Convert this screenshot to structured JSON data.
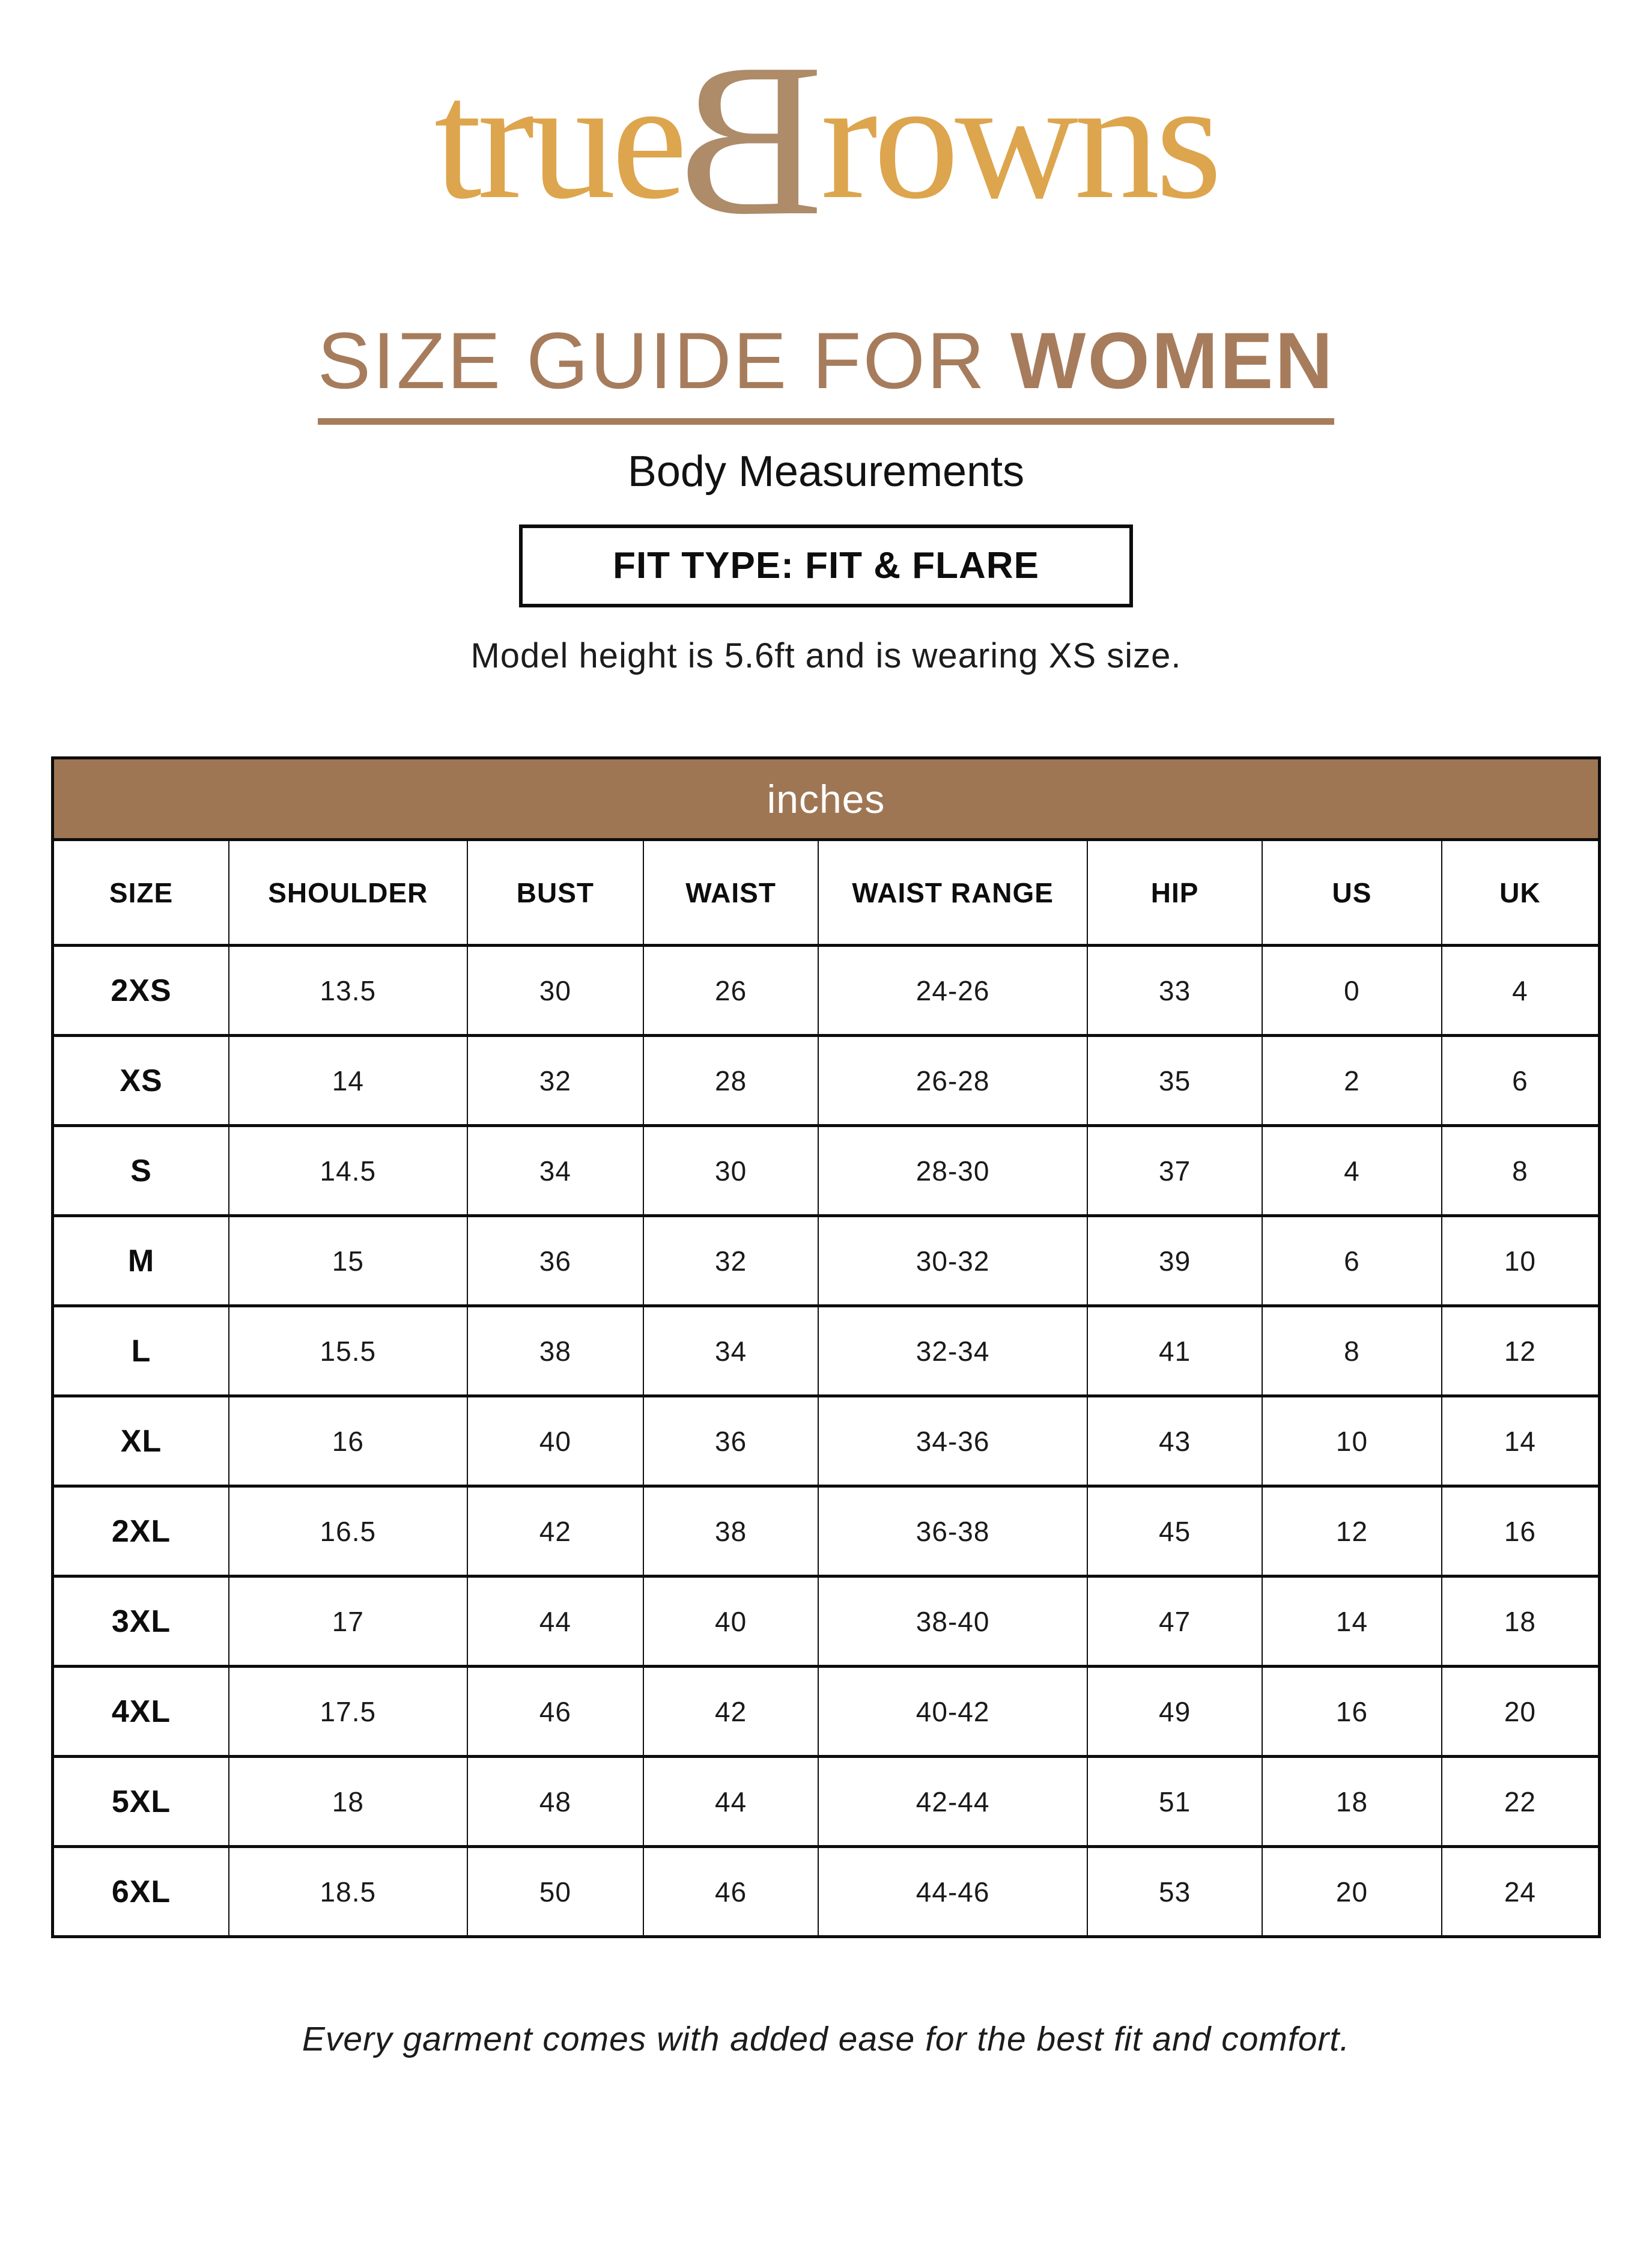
{
  "theme": {
    "gold": "#DDA54D",
    "taupe": "#AE8B69",
    "brown": "#A67C5C",
    "band_brown": "#9F7654",
    "ink": "#111111",
    "page_bg": "#FFFFFF"
  },
  "brand": {
    "logo_part1": "true",
    "logo_part2": "B",
    "logo_part3": "rowns"
  },
  "header": {
    "title_regular": "SIZE GUIDE FOR ",
    "title_bold": "WOMEN",
    "subtitle": "Body Measurements",
    "fit_type_label": "FIT TYPE: FIT & FLARE",
    "model_note": "Model height is 5.6ft and is wearing XS size."
  },
  "table": {
    "unit_header": "inches",
    "columns": [
      "SIZE",
      "SHOULDER",
      "BUST",
      "WAIST",
      "WAIST RANGE",
      "HIP",
      "US",
      "UK"
    ],
    "rows": [
      [
        "2XS",
        "13.5",
        "30",
        "26",
        "24-26",
        "33",
        "0",
        "4"
      ],
      [
        "XS",
        "14",
        "32",
        "28",
        "26-28",
        "35",
        "2",
        "6"
      ],
      [
        "S",
        "14.5",
        "34",
        "30",
        "28-30",
        "37",
        "4",
        "8"
      ],
      [
        "M",
        "15",
        "36",
        "32",
        "30-32",
        "39",
        "6",
        "10"
      ],
      [
        "L",
        "15.5",
        "38",
        "34",
        "32-34",
        "41",
        "8",
        "12"
      ],
      [
        "XL",
        "16",
        "40",
        "36",
        "34-36",
        "43",
        "10",
        "14"
      ],
      [
        "2XL",
        "16.5",
        "42",
        "38",
        "36-38",
        "45",
        "12",
        "16"
      ],
      [
        "3XL",
        "17",
        "44",
        "40",
        "38-40",
        "47",
        "14",
        "18"
      ],
      [
        "4XL",
        "17.5",
        "46",
        "42",
        "40-42",
        "49",
        "16",
        "20"
      ],
      [
        "5XL",
        "18",
        "48",
        "44",
        "42-44",
        "51",
        "18",
        "22"
      ],
      [
        "6XL",
        "18.5",
        "50",
        "46",
        "44-46",
        "53",
        "20",
        "24"
      ]
    ]
  },
  "footer": {
    "note": "Every garment comes with added ease for the best fit and comfort."
  }
}
